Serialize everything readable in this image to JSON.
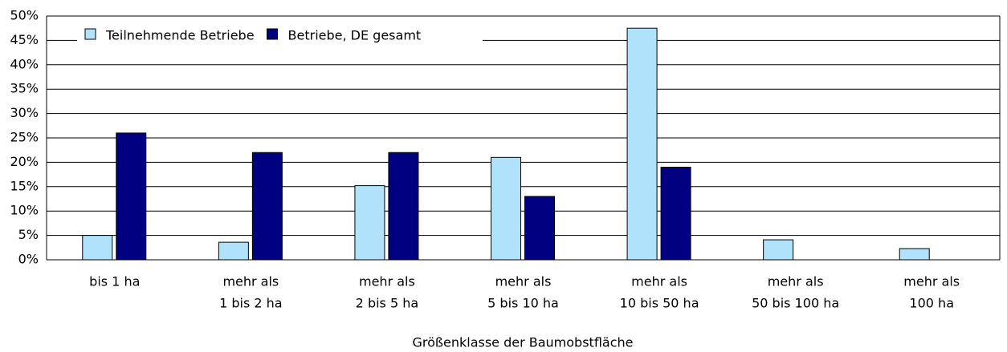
{
  "chart_data": {
    "type": "bar",
    "x_label": "Größenklasse der Baumobstfläche",
    "categories": [
      [
        "bis 1 ha"
      ],
      [
        "mehr als",
        "1 bis 2 ha"
      ],
      [
        "mehr als",
        "2 bis 5 ha"
      ],
      [
        "mehr als",
        "5 bis 10 ha"
      ],
      [
        "mehr als",
        "10 bis 50 ha"
      ],
      [
        "mehr als",
        "50 bis 100 ha"
      ],
      [
        "mehr als",
        "100 ha"
      ]
    ],
    "series": [
      {
        "name": "Teilnehmende Betriebe",
        "color": "#b0e2fb",
        "values": [
          5,
          3.6,
          15.2,
          21,
          47.5,
          4.1,
          2.3
        ]
      },
      {
        "name": "Betriebe, DE gesamt",
        "color": "#000080",
        "values": [
          26,
          22,
          22,
          13,
          19,
          0,
          0
        ]
      }
    ],
    "ylim": [
      0,
      50
    ],
    "yticks": [
      {
        "value": 0,
        "label": "0%"
      },
      {
        "value": 5,
        "label": "5%"
      },
      {
        "value": 10,
        "label": "10%"
      },
      {
        "value": 15,
        "label": "15%"
      },
      {
        "value": 20,
        "label": "20%"
      },
      {
        "value": 25,
        "label": "25%"
      },
      {
        "value": 30,
        "label": "30%"
      },
      {
        "value": 35,
        "label": "35%"
      },
      {
        "value": 40,
        "label": "40%"
      },
      {
        "value": 45,
        "label": "45%"
      },
      {
        "value": 50,
        "label": "50%"
      }
    ],
    "grid": true,
    "legend": "top-left"
  }
}
